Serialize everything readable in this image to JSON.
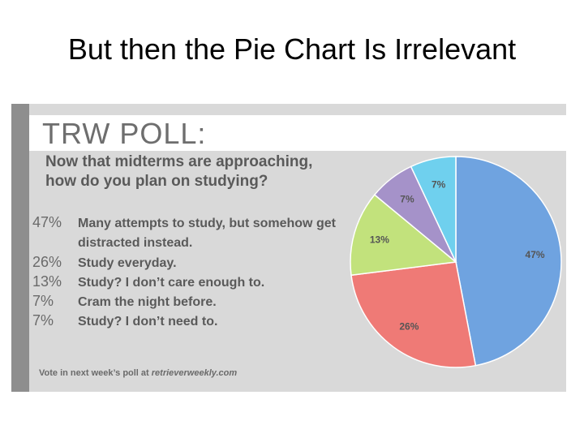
{
  "slide": {
    "title": "But then the Pie Chart Is Irrelevant"
  },
  "poll": {
    "logo": "TRW POLL:",
    "question": "Now that midterms are approaching, how do you plan on studying?",
    "legend": [
      {
        "pct": "47%",
        "text": "Many attempts to study, but somehow get distracted instead."
      },
      {
        "pct": "26%",
        "text": "Study everyday."
      },
      {
        "pct": "13%",
        "text": "Study? I don’t care enough to."
      },
      {
        "pct": "7%",
        "text": "Cram the night before."
      },
      {
        "pct": "7%",
        "text": "Study? I don’t need to."
      }
    ],
    "footer_prefix": "Vote in next week’s poll at ",
    "footer_link": "retrieverweekly.com"
  },
  "chart_data": {
    "type": "pie",
    "title": "",
    "slices": [
      {
        "label": "47%",
        "value": 47,
        "color": "#6fa3e0"
      },
      {
        "label": "26%",
        "value": 26,
        "color": "#ef7a76"
      },
      {
        "label": "13%",
        "value": 13,
        "color": "#c2e27c"
      },
      {
        "label": "7%",
        "value": 7,
        "color": "#a592c9"
      },
      {
        "label": "7%",
        "value": 7,
        "color": "#6fd0ee"
      }
    ],
    "start": "top",
    "direction": "clockwise"
  }
}
